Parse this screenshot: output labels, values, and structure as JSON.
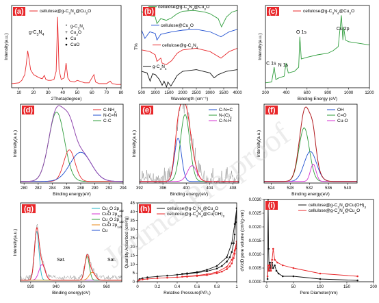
{
  "watermark": "Journal Pre-proof",
  "colors": {
    "red": "#e8272a",
    "blue": "#1f4fd1",
    "green": "#2d9c3a",
    "black": "#111111",
    "purple": "#8e44ad",
    "magenta": "#d52fd0",
    "cyan": "#1fb3c4",
    "orange": "#e88a1a",
    "darkred": "#b0171c",
    "gray": "#777777",
    "label_bg": "#e8272a"
  },
  "chart_data": [
    {
      "id": "a",
      "type": "line",
      "letter": "(a)",
      "xlabel": "2Theta(degree)",
      "ylabel": "Intensity(a.u.)",
      "xlim": [
        5,
        80
      ],
      "xticks": [
        10,
        20,
        30,
        40,
        50,
        60,
        70,
        80
      ],
      "legend": [
        {
          "name": "cellulose@g-C3N4@Cu2O",
          "color": "red"
        }
      ],
      "symbol_legend": [
        {
          "symbol": "*",
          "label": "g-C3N4"
        },
        {
          "symbol": "+",
          "label": "Cu2O"
        },
        {
          "symbol": "♦",
          "label": "Cu"
        },
        {
          "symbol": "●",
          "label": "CuO"
        }
      ],
      "annotations": [
        {
          "text": "g-C3N4",
          "x": 22,
          "y": 0.66
        }
      ],
      "series": [
        {
          "color": "red",
          "x": [
            5,
            10,
            12,
            14,
            15,
            16,
            17,
            18,
            20,
            22,
            24,
            26,
            27.4,
            28.5,
            30,
            32,
            34,
            35.5,
            36.5,
            37.5,
            39,
            41,
            42.3,
            43.5,
            45,
            48,
            50,
            55,
            58,
            61.4,
            62.5,
            65,
            70,
            72.5,
            74,
            77,
            80
          ],
          "y": [
            0.05,
            0.06,
            0.09,
            0.16,
            0.28,
            0.45,
            0.34,
            0.22,
            0.16,
            0.14,
            0.12,
            0.11,
            0.15,
            0.1,
            0.09,
            0.09,
            0.1,
            0.2,
            0.86,
            0.22,
            0.1,
            0.12,
            0.3,
            0.12,
            0.08,
            0.07,
            0.09,
            0.06,
            0.06,
            0.16,
            0.07,
            0.05,
            0.05,
            0.08,
            0.05,
            0.04,
            0.04
          ]
        }
      ]
    },
    {
      "id": "b",
      "type": "line",
      "letter": "(b)",
      "xlabel": "Wavelength (cm⁻¹)",
      "ylabel": "T%",
      "xlim": [
        500,
        4000
      ],
      "xticks": [
        500,
        1000,
        1500,
        2000,
        2500,
        3000,
        3500,
        4000
      ],
      "series": [
        {
          "name": "cellulose@g-C3N4@Cu2O",
          "color": "green",
          "x": [
            500,
            600,
            800,
            1000,
            1060,
            1200,
            1400,
            1600,
            1800,
            2000,
            2400,
            2800,
            3000,
            3300,
            3420,
            3600,
            3800,
            4000
          ],
          "y": [
            0.93,
            0.9,
            0.88,
            0.86,
            0.78,
            0.84,
            0.82,
            0.85,
            0.9,
            0.93,
            0.94,
            0.92,
            0.9,
            0.84,
            0.74,
            0.86,
            0.92,
            0.94
          ]
        },
        {
          "name": "cellulose@Cu2O",
          "color": "blue",
          "x": [
            500,
            620,
            800,
            1000,
            1060,
            1200,
            1600,
            2000,
            2500,
            3000,
            3400,
            3700,
            4000
          ],
          "y": [
            0.7,
            0.6,
            0.68,
            0.66,
            0.58,
            0.65,
            0.68,
            0.7,
            0.71,
            0.68,
            0.62,
            0.68,
            0.71
          ]
        },
        {
          "name": "cellulose@g-C3N4",
          "color": "red",
          "x": [
            500,
            800,
            1000,
            1060,
            1200,
            1250,
            1400,
            1600,
            1800,
            2000,
            2500,
            3000,
            3200,
            3400,
            3700,
            4000
          ],
          "y": [
            0.46,
            0.44,
            0.4,
            0.32,
            0.36,
            0.3,
            0.28,
            0.33,
            0.42,
            0.46,
            0.48,
            0.44,
            0.4,
            0.36,
            0.44,
            0.48
          ]
        },
        {
          "name": "g-C3N4",
          "color": "black",
          "x": [
            500,
            700,
            810,
            900,
            1000,
            1150,
            1250,
            1320,
            1410,
            1460,
            1570,
            1640,
            1800,
            2000,
            2500,
            3000,
            3150,
            3300,
            3600,
            4000
          ],
          "y": [
            0.2,
            0.18,
            0.08,
            0.17,
            0.16,
            0.1,
            0.03,
            0.08,
            0.01,
            0.07,
            0.02,
            0.06,
            0.15,
            0.2,
            0.22,
            0.18,
            0.12,
            0.16,
            0.2,
            0.22
          ]
        }
      ]
    },
    {
      "id": "c",
      "type": "line",
      "letter": "(c)",
      "xlabel": "Binding Energy (eV)",
      "ylabel": "Intensity(a.u.)",
      "xlim": [
        200,
        1200
      ],
      "xticks": [
        200,
        400,
        600,
        800,
        1000,
        1200
      ],
      "legend": [
        {
          "name": "cellulose@g-C3N4@Cu2O",
          "color": "red"
        }
      ],
      "annotations": [
        {
          "text": "C 1s",
          "x": 255,
          "y": 0.28
        },
        {
          "text": "N 1s",
          "x": 370,
          "y": 0.26
        },
        {
          "text": "O 1s",
          "x": 545,
          "y": 0.66
        },
        {
          "text": "Cu 2p",
          "x": 945,
          "y": 0.7
        }
      ],
      "series": [
        {
          "color": "green",
          "x": [
            200,
            260,
            284,
            300,
            330,
            380,
            398,
            420,
            480,
            520,
            531,
            545,
            600,
            700,
            800,
            850,
            900,
            930,
            945,
            952,
            970,
            1000,
            1100,
            1200
          ],
          "y": [
            0.06,
            0.07,
            0.25,
            0.1,
            0.12,
            0.14,
            0.3,
            0.18,
            0.2,
            0.25,
            0.62,
            0.35,
            0.37,
            0.4,
            0.42,
            0.45,
            0.5,
            0.88,
            0.58,
            0.74,
            0.58,
            0.56,
            0.54,
            0.52
          ]
        }
      ]
    },
    {
      "id": "d",
      "type": "line",
      "letter": "(d)",
      "xlabel": "Binding energy(eV)",
      "ylabel": "Intensity(a.u.)",
      "xlim": [
        279.5,
        294
      ],
      "xticks": [
        280,
        282,
        284,
        286,
        288,
        290,
        292,
        294
      ],
      "legend": [
        {
          "name": "C-NH2",
          "color": "red"
        },
        {
          "name": "N-C=N",
          "color": "blue"
        },
        {
          "name": "C-C",
          "color": "green"
        }
      ],
      "peaks": [
        {
          "color": "green",
          "center": 284.6,
          "height": 0.88,
          "width": 1.1
        },
        {
          "color": "red",
          "center": 286.4,
          "height": 0.4,
          "width": 0.8
        },
        {
          "color": "blue",
          "center": 288.0,
          "height": 0.37,
          "width": 1.5
        }
      ],
      "envelope_color": "purple"
    },
    {
      "id": "e",
      "type": "line",
      "letter": "(e)",
      "xlabel": "Binding energy(eV)",
      "ylabel": "Intensity(a.u.)",
      "xlim": [
        392,
        409
      ],
      "xticks": [
        392,
        396,
        400,
        404,
        408
      ],
      "legend": [
        {
          "name": "C-N=C",
          "color": "blue"
        },
        {
          "name": "N-(C)3",
          "color": "green"
        },
        {
          "name": "C-N-H",
          "color": "magenta"
        }
      ],
      "peaks": [
        {
          "color": "blue",
          "center": 398.6,
          "height": 0.55,
          "width": 0.6
        },
        {
          "color": "green",
          "center": 399.8,
          "height": 0.85,
          "width": 0.8
        },
        {
          "color": "magenta",
          "center": 401.0,
          "height": 0.2,
          "width": 0.8
        }
      ],
      "envelope_color": "red",
      "noise_color": "gray"
    },
    {
      "id": "f",
      "type": "line",
      "letter": "(f)",
      "xlabel": "Binding energy(eV)",
      "ylabel": "Intensity(a.u.)",
      "xlim": [
        522.5,
        542
      ],
      "xticks": [
        524,
        528,
        532,
        536,
        540
      ],
      "legend": [
        {
          "name": "OH",
          "color": "blue"
        },
        {
          "name": "C=O",
          "color": "green"
        },
        {
          "name": "Cu-O",
          "color": "magenta"
        }
      ],
      "peaks": [
        {
          "color": "green",
          "center": 530.9,
          "height": 0.68,
          "width": 1.1
        },
        {
          "color": "blue",
          "center": 532.2,
          "height": 0.38,
          "width": 1.3
        },
        {
          "color": "magenta",
          "center": 532.8,
          "height": 0.22,
          "width": 0.6
        }
      ],
      "envelope_color": "darkred"
    },
    {
      "id": "g",
      "type": "line",
      "letter": "(g)",
      "xlabel": "Binding energy(eV)",
      "ylabel": "Intensity(a.u.)",
      "xlim": [
        926,
        966
      ],
      "xticks": [
        930,
        940,
        950,
        960
      ],
      "legend": [
        {
          "name": "Cu2O 2p3/2",
          "color": "cyan"
        },
        {
          "name": "CuO 2p3/2",
          "color": "magenta"
        },
        {
          "name": "Cu2O 2p1/2",
          "color": "green"
        },
        {
          "name": "CuO 2p1/2",
          "color": "orange"
        },
        {
          "name": "Cu",
          "color": "blue"
        }
      ],
      "legend_visible": [
        "C",
        "2p3/2",
        "2p1/2",
        "Cu",
        "2p1/2",
        "Cu"
      ],
      "annotations": [
        {
          "text": "Sat.",
          "x": 942,
          "y": 0.26
        },
        {
          "text": "Sat.",
          "x": 962,
          "y": 0.26
        }
      ],
      "peaks": [
        {
          "color": "cyan",
          "center": 932.4,
          "height": 0.62,
          "width": 0.9
        },
        {
          "color": "magenta",
          "center": 934.5,
          "height": 0.2,
          "width": 1.2
        },
        {
          "color": "green",
          "center": 952.3,
          "height": 0.3,
          "width": 0.9
        },
        {
          "color": "orange",
          "center": 954.3,
          "height": 0.1,
          "width": 1.2
        }
      ],
      "envelope_color": "red",
      "noise_color": "gray"
    },
    {
      "id": "h",
      "type": "line",
      "letter": "(h)",
      "xlabel": "Relative Pressure(P/P₀)",
      "ylabel": "Quantity Adsorbed (cm³/g)",
      "xlim": [
        0,
        1
      ],
      "ylim": [
        0,
        45
      ],
      "xticks": [
        0.0,
        0.2,
        0.4,
        0.6,
        0.8,
        1.0
      ],
      "yticks": [
        0,
        5,
        10,
        15,
        20,
        25,
        30,
        35,
        40,
        45
      ],
      "series": [
        {
          "name": "cellulose@g-C3N4@Cu2O",
          "color": "black",
          "x": [
            0.0,
            0.02,
            0.05,
            0.1,
            0.2,
            0.3,
            0.4,
            0.5,
            0.6,
            0.7,
            0.8,
            0.85,
            0.9,
            0.93,
            0.95,
            0.97,
            0.98,
            0.99,
            1.0,
            0.98,
            0.95,
            0.9,
            0.8,
            0.7,
            0.6,
            0.5,
            0.45
          ],
          "y": [
            0.5,
            1.5,
            2.0,
            2.5,
            3.0,
            3.5,
            4.0,
            4.5,
            5.2,
            6.0,
            7.5,
            9.0,
            11.5,
            14.0,
            17.0,
            22.0,
            27.0,
            34.0,
            42.0,
            33.0,
            22.0,
            14.0,
            9.0,
            6.8,
            5.5,
            4.8,
            4.5
          ]
        },
        {
          "name": "cellulose@g-C3N4@Cu(OH)2",
          "color": "red",
          "x": [
            0.0,
            0.02,
            0.05,
            0.1,
            0.2,
            0.3,
            0.4,
            0.5,
            0.6,
            0.7,
            0.8,
            0.85,
            0.9,
            0.93,
            0.95,
            0.97,
            0.98,
            0.99,
            1.0,
            0.98,
            0.95,
            0.9,
            0.8,
            0.7,
            0.6,
            0.5,
            0.45
          ],
          "y": [
            0.3,
            1.0,
            1.3,
            1.6,
            2.0,
            2.3,
            2.6,
            2.9,
            3.3,
            3.8,
            4.8,
            5.8,
            7.2,
            8.8,
            10.5,
            13.5,
            16.0,
            19.0,
            23.0,
            18.0,
            12.5,
            8.5,
            5.5,
            4.3,
            3.6,
            3.1,
            2.9
          ]
        }
      ]
    },
    {
      "id": "i",
      "type": "line",
      "letter": "(i)",
      "xlabel": "Pore Diameter(nm)",
      "ylabel": "dV/dD pore volume (cm³/g·nm)",
      "xlim": [
        -5,
        200
      ],
      "ylim": [
        0,
        0.003
      ],
      "xticks": [
        0,
        50,
        100,
        150,
        200
      ],
      "yticks": [
        0.0,
        0.0005,
        0.001,
        0.0015,
        0.002,
        0.0025,
        0.003
      ],
      "ytick_labels": [
        "0.0000",
        "0.0005",
        "0.0010",
        "0.0015",
        "0.0020",
        "0.0025",
        "0.0030"
      ],
      "series": [
        {
          "name": "cellulose@g-C3N4@Cu(OH)2",
          "color": "black",
          "x": [
            1.5,
            2.5,
            3.5,
            4.5,
            6,
            8,
            10,
            12,
            15,
            18,
            22,
            30,
            50,
            100,
            170
          ],
          "y": [
            0.0001,
            0.003,
            0.0012,
            0.0004,
            0.0007,
            0.0005,
            0.0007,
            0.0005,
            0.0006,
            0.0004,
            0.0003,
            0.0002,
            0.0002,
            0.0001,
            5e-05
          ]
        },
        {
          "name": "cellulose@g-C3N4@Cu2O",
          "color": "red",
          "x": [
            1.5,
            2.5,
            3.5,
            5,
            8,
            10,
            12,
            15,
            20,
            30,
            50,
            100,
            170
          ],
          "y": [
            0.0002,
            0.0006,
            0.0004,
            0.0006,
            0.0004,
            0.0008,
            0.0012,
            0.0008,
            0.0007,
            0.0006,
            0.0005,
            0.0003,
            0.0002
          ]
        }
      ]
    }
  ]
}
